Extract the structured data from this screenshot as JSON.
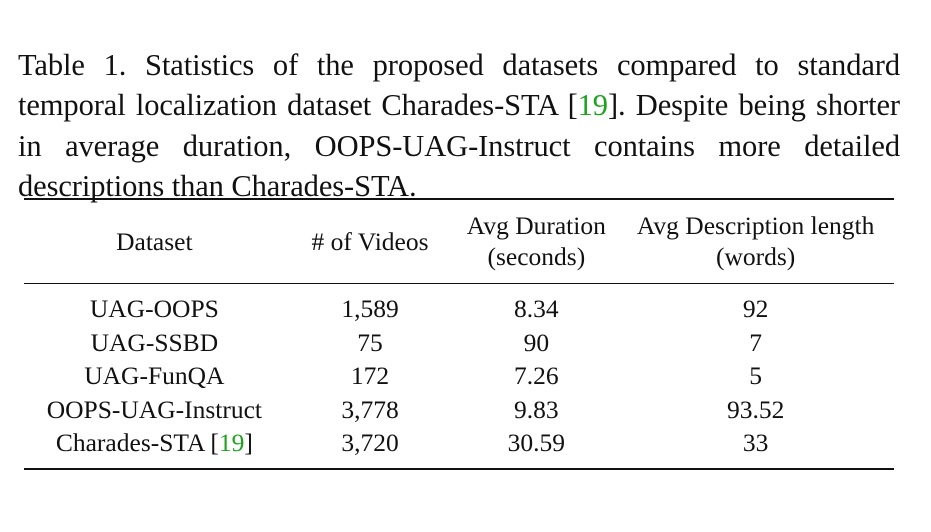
{
  "caption": {
    "text_before": "Table 1. Statistics of the proposed datasets compared to standard temporal localization dataset Charades-STA [",
    "citation": "19",
    "text_after": "]. Despite being shorter in average duration, OOPS-UAG-Instruct contains more detailed descriptions than Charades-STA."
  },
  "table": {
    "headers": {
      "dataset": "Dataset",
      "videos": "# of Videos",
      "duration_line1": "Avg Duration",
      "duration_line2": "(seconds)",
      "desc_line1": "Avg Description length",
      "desc_line2": "(words)"
    },
    "rows": [
      {
        "dataset": "UAG-OOPS",
        "videos": "1,589",
        "duration": "8.34",
        "desc": "92"
      },
      {
        "dataset": "UAG-SSBD",
        "videos": "75",
        "duration": "90",
        "desc": "7"
      },
      {
        "dataset": "UAG-FunQA",
        "videos": "172",
        "duration": "7.26",
        "desc": "5"
      },
      {
        "dataset": "OOPS-UAG-Instruct",
        "videos": "3,778",
        "duration": "9.83",
        "desc": "93.52"
      },
      {
        "dataset_prefix": "Charades-STA [",
        "dataset_cite": "19",
        "dataset_suffix": "]",
        "videos": "3,720",
        "duration": "30.59",
        "desc": "33"
      }
    ]
  },
  "colors": {
    "citation_link": "#1fa31f",
    "text": "#111111"
  }
}
